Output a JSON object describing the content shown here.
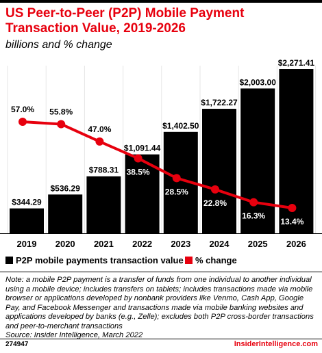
{
  "header": {
    "title": "US Peer-to-Peer (P2P) Mobile Payment Transaction Value, 2019-2026",
    "subtitle": "billions and % change"
  },
  "colors": {
    "bar": "#000000",
    "line": "#e7000e",
    "accent": "#e7000e"
  },
  "chart_data": {
    "type": "bar",
    "title": "US Peer-to-Peer (P2P) Mobile Payment Transaction Value, 2019-2026",
    "subtitle": "billions and % change",
    "categories": [
      "2019",
      "2020",
      "2021",
      "2022",
      "2023",
      "2024",
      "2025",
      "2026"
    ],
    "series": [
      {
        "name": "P2P mobile payments transaction value",
        "type": "bar",
        "values": [
          344.29,
          536.29,
          788.31,
          1091.44,
          1402.5,
          1722.27,
          2003.0,
          2271.41
        ],
        "labels": [
          "$344.29",
          "$536.29",
          "$788.31",
          "$1,091.44",
          "$1,402.50",
          "$1,722.27",
          "$2,003.00",
          "$2,271.41"
        ]
      },
      {
        "name": "% change",
        "type": "line",
        "values": [
          57.0,
          55.8,
          47.0,
          38.5,
          28.5,
          22.8,
          16.3,
          13.4
        ],
        "labels": [
          "57.0%",
          "55.8%",
          "47.0%",
          "38.5%",
          "28.5%",
          "22.8%",
          "16.3%",
          "13.4%"
        ]
      }
    ],
    "legend_position": "bottom-left",
    "grid": false
  },
  "legend": {
    "items": [
      {
        "label": "P2P mobile payments transaction value",
        "color": "#000000"
      },
      {
        "label": "% change",
        "color": "#e7000e"
      }
    ]
  },
  "note": "Note: a mobile P2P payment is a transfer of funds from one individual to another individual using a mobile device; includes transfers on tablets; includes transactions made via mobile browser or applications developed by nonbank providers like Venmo, Cash App, Google Pay, and Facebook Messenger and transactions made via mobile banking websites and applications developed by banks (e.g., Zelle); excludes both P2P cross-border transactions and peer-to-merchant transactions",
  "source": "Source: Insider Intelligence, March 2022",
  "footer": {
    "id": "274947",
    "brand": "InsiderIntelligence.com"
  }
}
